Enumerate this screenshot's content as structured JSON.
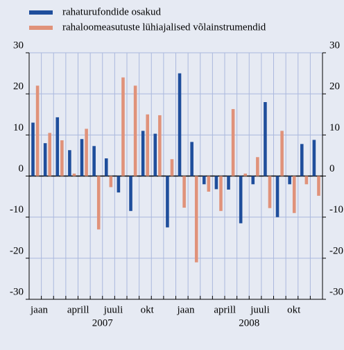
{
  "chart_data": {
    "type": "bar",
    "categories": [
      "jaan",
      null,
      null,
      "aprill",
      null,
      null,
      "juuli",
      null,
      null,
      "okt",
      null,
      null,
      "jaan",
      null,
      null,
      "aprill",
      null,
      null,
      "juuli",
      null,
      null,
      "okt",
      null,
      null
    ],
    "year_labels": [
      "2007",
      "2008"
    ],
    "series": [
      {
        "name": "rahaturufondide osakud",
        "color": "#1f4e9c",
        "values": [
          13,
          8,
          14.3,
          6.3,
          9,
          7.3,
          4.3,
          -4,
          -8.5,
          11,
          10.3,
          -12.5,
          25,
          8.3,
          -2,
          -3.2,
          -3.3,
          -11.5,
          -2,
          18,
          -10,
          -2,
          7.8,
          8.8
        ]
      },
      {
        "name": "rahaloomeasutuste lühiajalised võlainstrumendid",
        "color": "#e0927a",
        "values": [
          22,
          10.5,
          8.7,
          0.6,
          11.5,
          -13,
          -2.7,
          24,
          22,
          15,
          14.8,
          4.1,
          -7.7,
          -21,
          -3.8,
          -8.5,
          16.3,
          0.6,
          4.6,
          -7.8,
          11,
          -9,
          -2,
          -4.8
        ]
      }
    ],
    "ylim": [
      -30,
      30
    ],
    "yticks": [
      -30,
      -20,
      -10,
      0,
      10,
      20,
      30
    ],
    "grid": true,
    "legend": "top-left"
  }
}
